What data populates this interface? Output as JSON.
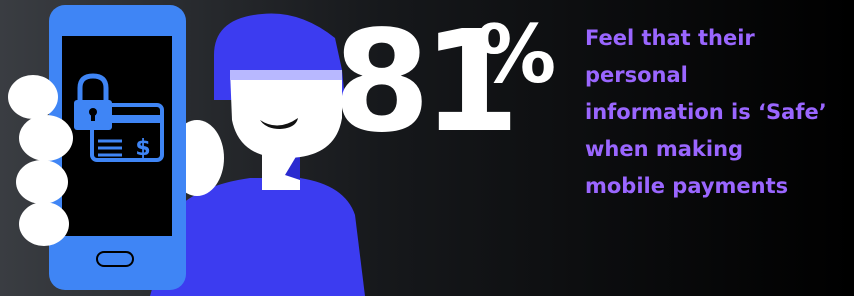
{
  "stat": {
    "number": "81",
    "unit": "%"
  },
  "caption": [
    "Feel that their",
    "personal",
    "information is ‘Safe’",
    "when making",
    "mobile payments"
  ],
  "card_symbol": "$"
}
